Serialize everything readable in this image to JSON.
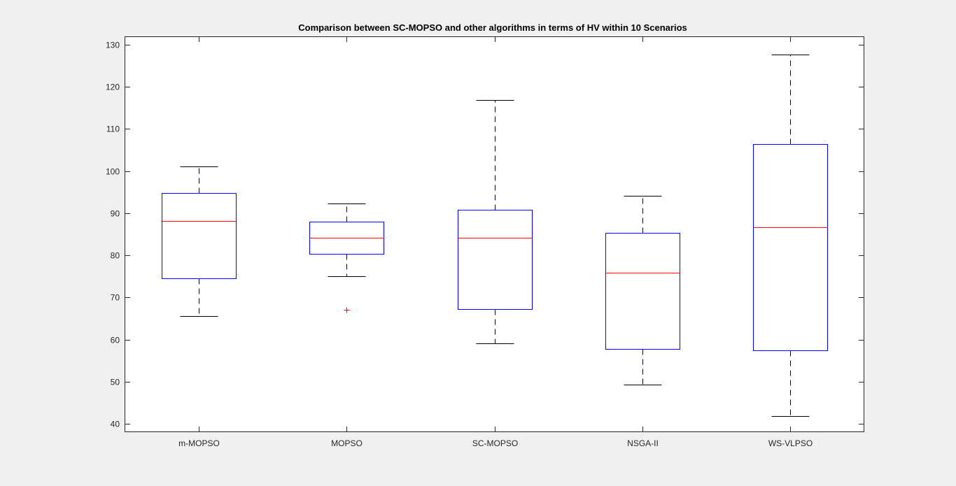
{
  "chart_data": {
    "type": "box",
    "title": "Comparison between SC-MOPSO and other algorithms in terms of HV within 10 Scenarios",
    "xlabel": "",
    "ylabel": "",
    "categories": [
      "m-MOPSO",
      "MOPSO",
      "SC-MOPSO",
      "NSGA-II",
      "WS-VLPSO"
    ],
    "y_ticks": [
      40,
      50,
      60,
      70,
      80,
      90,
      100,
      110,
      120,
      130
    ],
    "ylim": [
      38,
      132
    ],
    "grid": false,
    "boxes": [
      {
        "name": "m-MOPSO",
        "whisker_low": 65.5,
        "q1": 74.6,
        "median": 88.2,
        "q3": 94.8,
        "whisker_high": 101.1,
        "outliers": []
      },
      {
        "name": "MOPSO",
        "whisker_low": 75.1,
        "q1": 80.4,
        "median": 84.1,
        "q3": 88.0,
        "whisker_high": 92.3,
        "outliers": [
          67.1
        ]
      },
      {
        "name": "SC-MOPSO",
        "whisker_low": 59.1,
        "q1": 67.3,
        "median": 84.2,
        "q3": 90.8,
        "whisker_high": 116.9,
        "outliers": []
      },
      {
        "name": "NSGA-II",
        "whisker_low": 49.3,
        "q1": 57.8,
        "median": 75.9,
        "q3": 85.4,
        "whisker_high": 94.1,
        "outliers": []
      },
      {
        "name": "WS-VLPSO",
        "whisker_low": 41.9,
        "q1": 57.5,
        "median": 86.7,
        "q3": 106.5,
        "whisker_high": 127.7,
        "outliers": []
      }
    ],
    "colors": {
      "box": "#0000ff",
      "median": "#ff0000",
      "whisker": "#000000",
      "outlier": "#ff0000",
      "axes": "#262626"
    }
  }
}
